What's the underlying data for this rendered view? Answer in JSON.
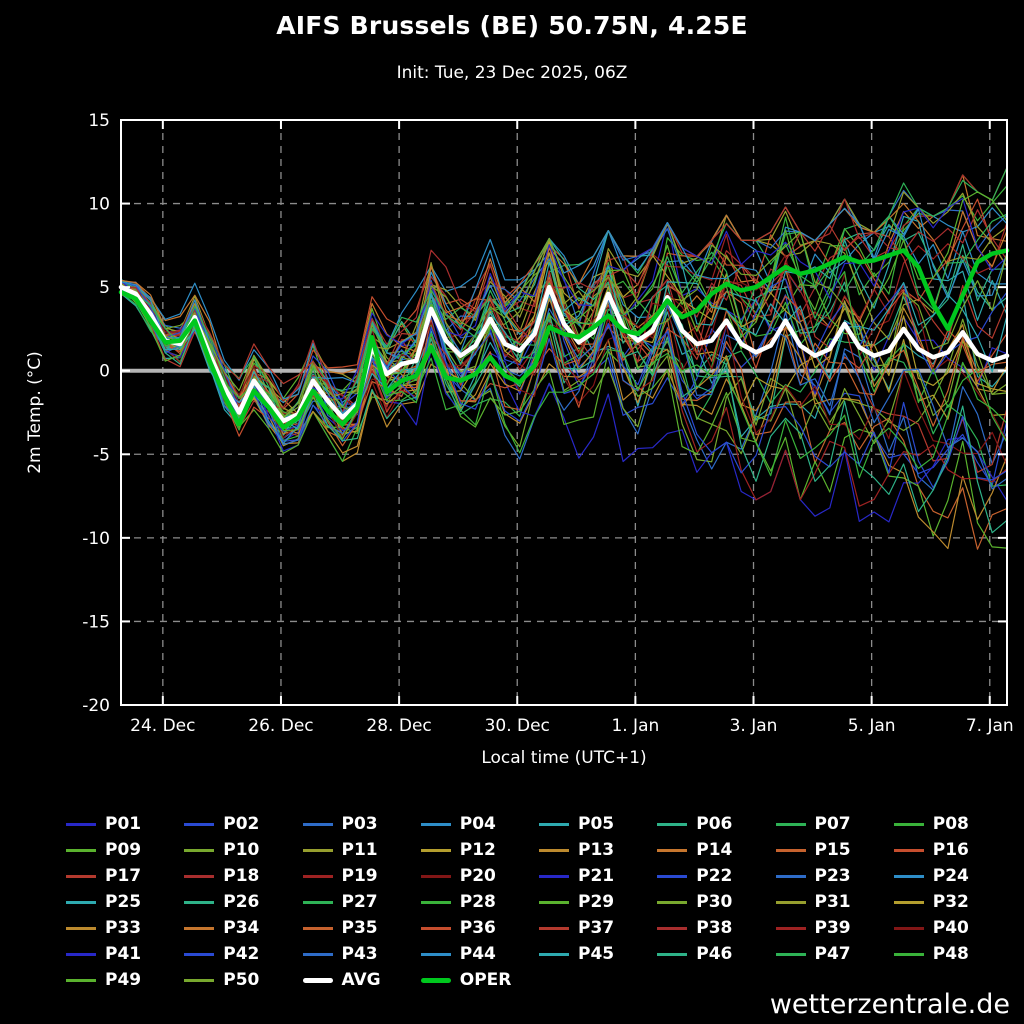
{
  "page": {
    "background": "#000000"
  },
  "watermark": "wetterzentrale.de",
  "chart_data": {
    "type": "line",
    "title": "AIFS Brussels (BE) 50.75N, 4.25E",
    "subtitle": "Init: Tue, 23 Dec 2025, 06Z",
    "xlabel": "Local time (UTC+1)",
    "ylabel": "2m Temp. (°C)",
    "ylim": [
      -20,
      15
    ],
    "yticks": [
      -20,
      -15,
      -10,
      -5,
      0,
      5,
      10,
      15
    ],
    "x_total_hours": 360,
    "xticks": [
      {
        "hour": 17,
        "label": "24. Dec"
      },
      {
        "hour": 65,
        "label": "26. Dec"
      },
      {
        "hour": 113,
        "label": "28. Dec"
      },
      {
        "hour": 161,
        "label": "30. Dec"
      },
      {
        "hour": 209,
        "label": "1. Jan"
      },
      {
        "hour": 257,
        "label": "3. Jan"
      },
      {
        "hour": 305,
        "label": "5. Jan"
      },
      {
        "hour": 353,
        "label": "7. Jan"
      }
    ],
    "grid": {
      "dashed_color": "#8c8c8c",
      "zero_line_color": "#b4b4b4",
      "border_color": "#ffffff"
    },
    "x_hours": [
      0,
      6,
      12,
      18,
      24,
      30,
      36,
      42,
      48,
      54,
      60,
      66,
      72,
      78,
      84,
      90,
      96,
      102,
      108,
      114,
      120,
      126,
      132,
      138,
      144,
      150,
      156,
      162,
      168,
      174,
      180,
      186,
      192,
      198,
      204,
      210,
      216,
      222,
      228,
      234,
      240,
      246,
      252,
      258,
      264,
      270,
      276,
      282,
      288,
      294,
      300,
      306,
      312,
      318,
      324,
      330,
      336,
      342,
      348,
      354,
      360
    ],
    "series": [
      {
        "name": "AVG",
        "color": "#ffffff",
        "width": 4.5,
        "values": [
          5.0,
          4.6,
          3.4,
          1.8,
          1.6,
          3.2,
          1.0,
          -1.0,
          -2.5,
          -0.6,
          -1.8,
          -3.0,
          -2.6,
          -0.6,
          -1.8,
          -2.8,
          -2.0,
          1.4,
          -0.2,
          0.4,
          0.6,
          3.7,
          1.8,
          0.9,
          1.5,
          3.1,
          1.6,
          1.2,
          2.2,
          5.0,
          2.8,
          1.7,
          2.3,
          4.6,
          2.6,
          1.8,
          2.4,
          4.4,
          2.4,
          1.6,
          1.8,
          3.0,
          1.6,
          1.1,
          1.5,
          3.0,
          1.5,
          0.9,
          1.3,
          2.8,
          1.4,
          0.9,
          1.2,
          2.5,
          1.3,
          0.8,
          1.1,
          2.3,
          1.0,
          0.6,
          0.9
        ]
      },
      {
        "name": "OPER",
        "color": "#00c81e",
        "width": 4.5,
        "values": [
          4.7,
          4.3,
          3.0,
          1.7,
          1.8,
          3.0,
          0.6,
          -1.5,
          -3.2,
          -1.2,
          -2.2,
          -3.4,
          -2.8,
          -1.2,
          -2.4,
          -3.2,
          -2.2,
          2.0,
          -1.3,
          -0.6,
          -0.3,
          1.4,
          -0.4,
          -0.6,
          -0.2,
          0.8,
          -0.3,
          -0.7,
          0.3,
          2.6,
          2.2,
          2.0,
          2.6,
          3.3,
          2.4,
          2.2,
          3.0,
          4.2,
          3.2,
          3.6,
          4.6,
          5.2,
          4.8,
          5.0,
          5.6,
          6.2,
          5.8,
          6.0,
          6.4,
          6.8,
          6.5,
          6.6,
          6.9,
          7.2,
          6.2,
          4.0,
          2.5,
          4.5,
          6.5,
          7.0,
          7.2
        ]
      }
    ],
    "ensemble_envelope": {
      "min": [
        3.5,
        3.0,
        2.0,
        0.5,
        0.0,
        1.0,
        -1.5,
        -3.0,
        -4.5,
        -2.5,
        -3.5,
        -5.0,
        -4.5,
        -2.5,
        -4.0,
        -5.5,
        -5.0,
        -2.5,
        -4.5,
        -4.0,
        -4.5,
        -2.0,
        -4.0,
        -4.5,
        -5.0,
        -3.0,
        -5.5,
        -6.0,
        -5.5,
        -3.0,
        -5.0,
        -6.0,
        -5.5,
        -3.5,
        -6.0,
        -6.5,
        -6.0,
        -4.0,
        -6.5,
        -7.0,
        -6.5,
        -4.5,
        -7.5,
        -8.0,
        -7.5,
        -5.0,
        -8.0,
        -9.0,
        -8.5,
        -6.0,
        -9.5,
        -10.5,
        -10.0,
        -7.0,
        -10.5,
        -11.5,
        -11.0,
        -8.0,
        -12.0,
        -13.5,
        -13.0
      ],
      "max": [
        7.0,
        6.5,
        5.5,
        4.0,
        4.0,
        5.5,
        3.5,
        2.0,
        1.0,
        3.0,
        1.5,
        0.5,
        1.0,
        3.5,
        2.0,
        1.5,
        2.5,
        5.0,
        3.5,
        4.5,
        5.5,
        8.5,
        6.5,
        6.0,
        6.5,
        8.0,
        6.5,
        6.0,
        6.5,
        8.0,
        7.0,
        6.5,
        7.0,
        8.5,
        7.0,
        7.0,
        7.5,
        9.0,
        7.5,
        7.0,
        8.0,
        9.5,
        8.0,
        8.0,
        8.5,
        10.0,
        8.5,
        8.0,
        9.0,
        10.5,
        9.0,
        8.5,
        9.5,
        11.5,
        10.0,
        9.5,
        10.0,
        12.0,
        11.0,
        10.5,
        12.5
      ]
    },
    "members": [
      {
        "name": "P01",
        "color": "#2828c8"
      },
      {
        "name": "P02",
        "color": "#2a4ad2"
      },
      {
        "name": "P03",
        "color": "#2e6cc8"
      },
      {
        "name": "P04",
        "color": "#2e8ec8"
      },
      {
        "name": "P05",
        "color": "#2eaab0"
      },
      {
        "name": "P06",
        "color": "#2eb288"
      },
      {
        "name": "P07",
        "color": "#2eb256"
      },
      {
        "name": "P08",
        "color": "#3ab23a"
      },
      {
        "name": "P09",
        "color": "#5ab22e"
      },
      {
        "name": "P10",
        "color": "#78a82e"
      },
      {
        "name": "P11",
        "color": "#969e2e"
      },
      {
        "name": "P12",
        "color": "#b49e2e"
      },
      {
        "name": "P13",
        "color": "#bc8a2e"
      },
      {
        "name": "P14",
        "color": "#c6762e"
      },
      {
        "name": "P15",
        "color": "#c6622e"
      },
      {
        "name": "P16",
        "color": "#c64e2e"
      },
      {
        "name": "P17",
        "color": "#b43a2e"
      },
      {
        "name": "P18",
        "color": "#a82e2e"
      },
      {
        "name": "P19",
        "color": "#9e2222"
      },
      {
        "name": "P20",
        "color": "#821616"
      },
      {
        "name": "P21",
        "color": "#2828c8"
      },
      {
        "name": "P22",
        "color": "#2a4ad2"
      },
      {
        "name": "P23",
        "color": "#2e6cc8"
      },
      {
        "name": "P24",
        "color": "#2e8ec8"
      },
      {
        "name": "P25",
        "color": "#2eaab0"
      },
      {
        "name": "P26",
        "color": "#2eb288"
      },
      {
        "name": "P27",
        "color": "#2eb256"
      },
      {
        "name": "P28",
        "color": "#3ab23a"
      },
      {
        "name": "P29",
        "color": "#5ab22e"
      },
      {
        "name": "P30",
        "color": "#78a82e"
      },
      {
        "name": "P31",
        "color": "#969e2e"
      },
      {
        "name": "P32",
        "color": "#b49e2e"
      },
      {
        "name": "P33",
        "color": "#bc8a2e"
      },
      {
        "name": "P34",
        "color": "#c6762e"
      },
      {
        "name": "P35",
        "color": "#c6622e"
      },
      {
        "name": "P36",
        "color": "#c64e2e"
      },
      {
        "name": "P37",
        "color": "#b43a2e"
      },
      {
        "name": "P38",
        "color": "#a82e2e"
      },
      {
        "name": "P39",
        "color": "#9e2222"
      },
      {
        "name": "P40",
        "color": "#821616"
      },
      {
        "name": "P41",
        "color": "#2828c8"
      },
      {
        "name": "P42",
        "color": "#2a4ad2"
      },
      {
        "name": "P43",
        "color": "#2e6cc8"
      },
      {
        "name": "P44",
        "color": "#2e8ec8"
      },
      {
        "name": "P45",
        "color": "#2eaab0"
      },
      {
        "name": "P46",
        "color": "#2eb288"
      },
      {
        "name": "P47",
        "color": "#2eb256"
      },
      {
        "name": "P48",
        "color": "#3ab23a"
      },
      {
        "name": "P49",
        "color": "#5ab22e"
      },
      {
        "name": "P50",
        "color": "#78a82e"
      }
    ]
  }
}
